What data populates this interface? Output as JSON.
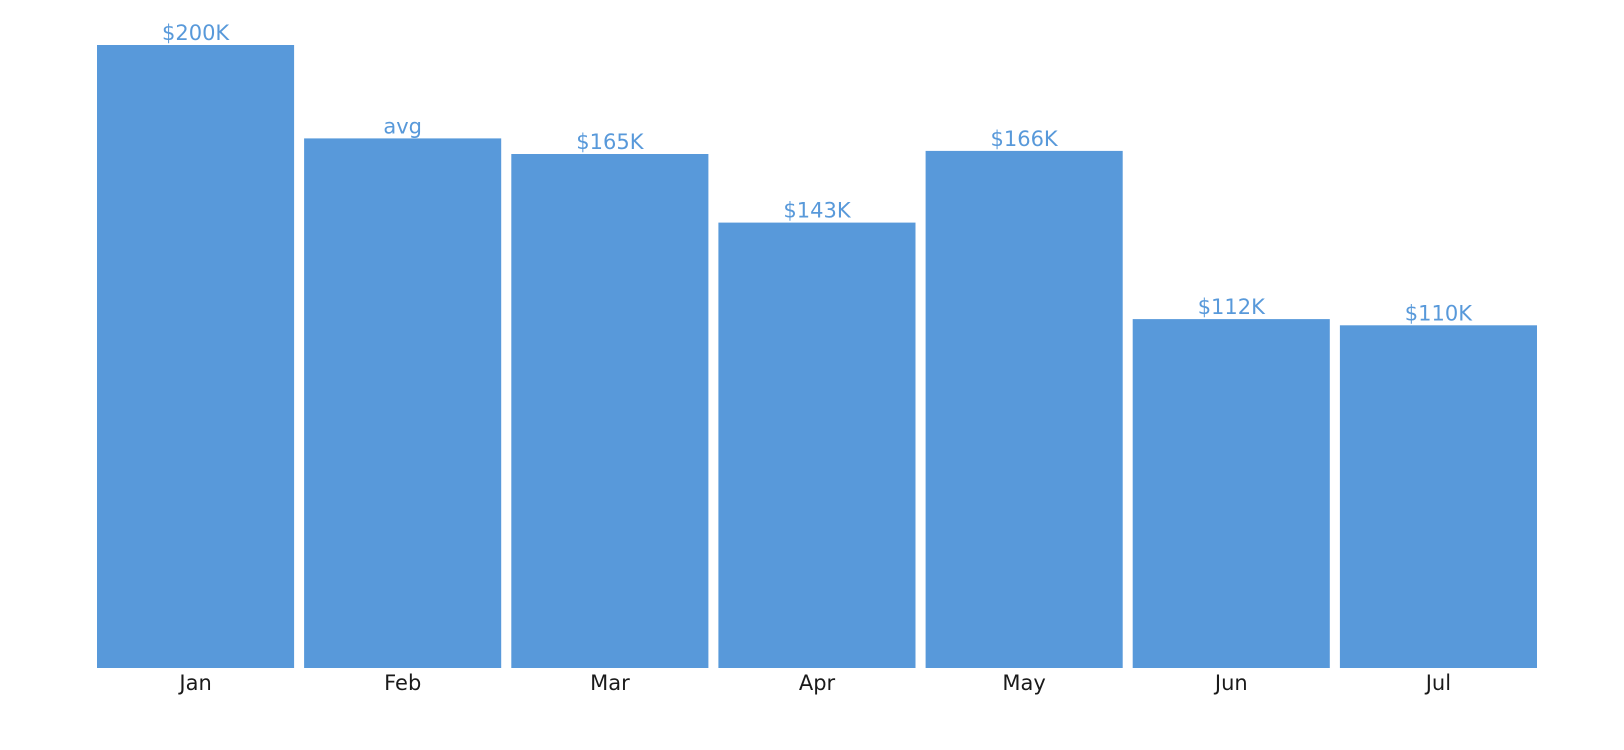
{
  "chart_data": {
    "type": "bar",
    "categories": [
      "Jan",
      "Feb",
      "Mar",
      "Apr",
      "May",
      "Jun",
      "Jul"
    ],
    "values": [
      200,
      170,
      165,
      143,
      166,
      112,
      110
    ],
    "labels": [
      "$200K",
      "avg",
      "$165K",
      "$143K",
      "$166K",
      "$112K",
      "$110K"
    ],
    "ylim": [
      0,
      200
    ],
    "grid": false,
    "colors": {
      "bar": "#5899DA",
      "label": "#5899DA",
      "tick": "#1a1a1a"
    }
  }
}
